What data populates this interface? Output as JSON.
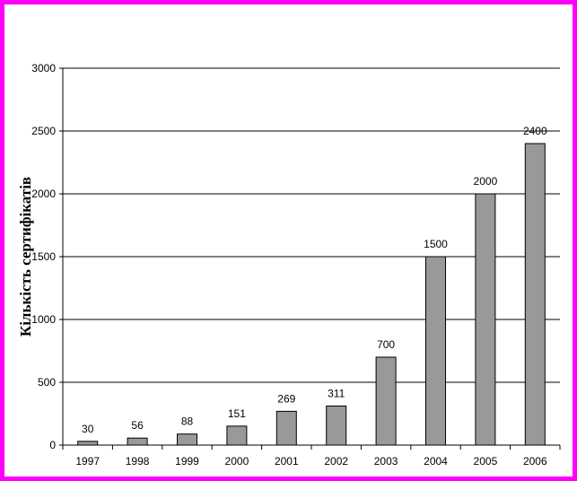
{
  "chart_data": {
    "type": "bar",
    "y_label": "Кількість сертифікатів",
    "categories": [
      "1997",
      "1998",
      "1999",
      "2000",
      "2001",
      "2002",
      "2003",
      "2004",
      "2005",
      "2006"
    ],
    "values": [
      30,
      56,
      88,
      151,
      269,
      311,
      700,
      1500,
      2000,
      2400
    ],
    "color": "#999999",
    "ylim": [
      0,
      3000
    ],
    "yticks": [
      0,
      500,
      1000,
      1500,
      2000,
      2500,
      3000
    ],
    "grid": true
  }
}
